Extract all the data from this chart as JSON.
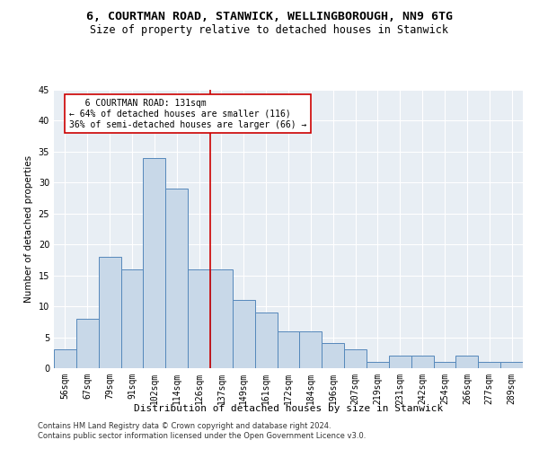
{
  "title1": "6, COURTMAN ROAD, STANWICK, WELLINGBOROUGH, NN9 6TG",
  "title2": "Size of property relative to detached houses in Stanwick",
  "xlabel": "Distribution of detached houses by size in Stanwick",
  "ylabel": "Number of detached properties",
  "categories": [
    "56sqm",
    "67sqm",
    "79sqm",
    "91sqm",
    "102sqm",
    "114sqm",
    "126sqm",
    "137sqm",
    "149sqm",
    "161sqm",
    "172sqm",
    "184sqm",
    "196sqm",
    "207sqm",
    "219sqm",
    "231sqm",
    "242sqm",
    "254sqm",
    "266sqm",
    "277sqm",
    "289sqm"
  ],
  "values": [
    3,
    8,
    18,
    16,
    34,
    29,
    16,
    16,
    11,
    9,
    6,
    6,
    4,
    3,
    1,
    2,
    2,
    1,
    2,
    1,
    1
  ],
  "bar_color": "#c8d8e8",
  "bar_edge_color": "#5588bb",
  "vline_x": 6.5,
  "vline_color": "#cc0000",
  "annotation_line1": "   6 COURTMAN ROAD: 131sqm",
  "annotation_line2": "← 64% of detached houses are smaller (116)",
  "annotation_line3": "36% of semi-detached houses are larger (66) →",
  "annotation_box_color": "white",
  "annotation_box_edge_color": "#cc0000",
  "ylim": [
    0,
    45
  ],
  "yticks": [
    0,
    5,
    10,
    15,
    20,
    25,
    30,
    35,
    40,
    45
  ],
  "title1_fontsize": 9.5,
  "title2_fontsize": 8.5,
  "xlabel_fontsize": 8,
  "ylabel_fontsize": 7.5,
  "tick_fontsize": 7,
  "annotation_fontsize": 7,
  "footer1": "Contains HM Land Registry data © Crown copyright and database right 2024.",
  "footer2": "Contains public sector information licensed under the Open Government Licence v3.0.",
  "footer_fontsize": 6,
  "bg_color": "#e8eef4",
  "grid_color": "white"
}
